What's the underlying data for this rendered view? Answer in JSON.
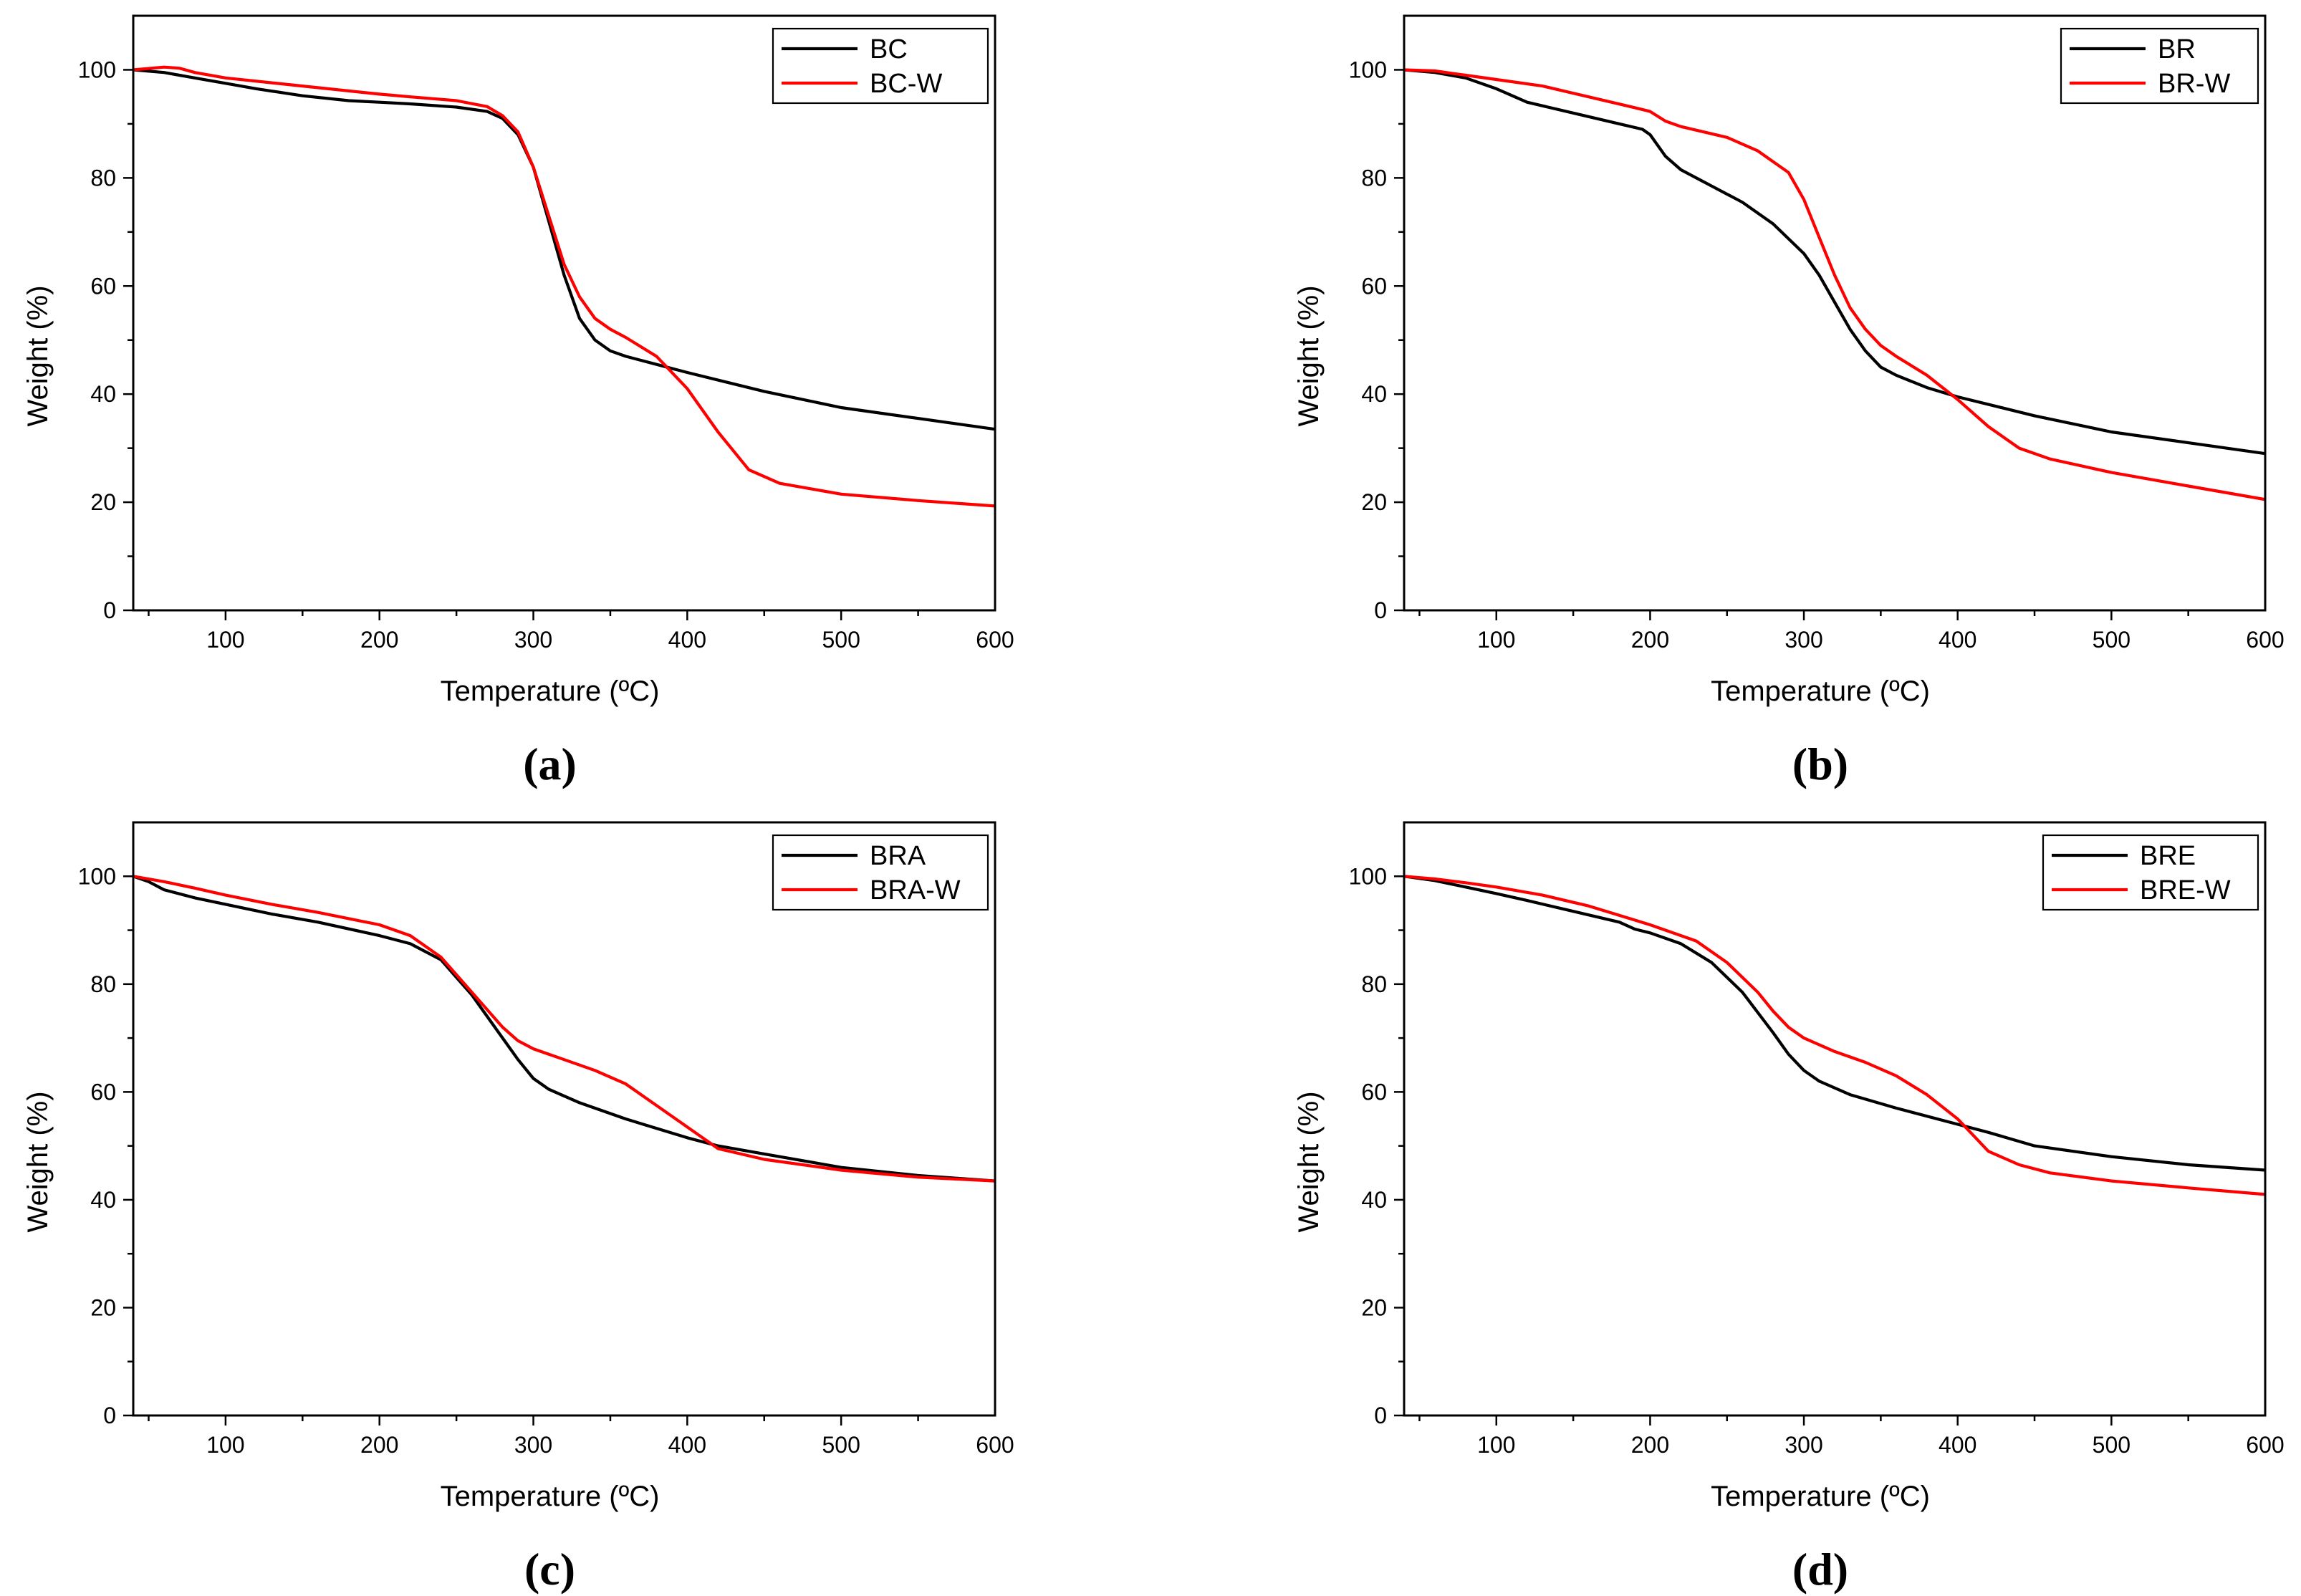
{
  "chart_data": [
    {
      "type": "line",
      "panel_label": "(a)",
      "xlabel": "Temperature (ºC)",
      "ylabel": "Weight (%)",
      "xlim": [
        40,
        600
      ],
      "ylim": [
        0,
        110
      ],
      "xticks": [
        100,
        200,
        300,
        400,
        500,
        600
      ],
      "yticks": [
        0,
        20,
        40,
        60,
        80,
        100
      ],
      "legend_position": "top-right",
      "series": [
        {
          "name": "BC",
          "color": "#000000",
          "x": [
            40,
            60,
            80,
            100,
            120,
            150,
            180,
            200,
            220,
            250,
            270,
            280,
            290,
            300,
            310,
            320,
            330,
            340,
            350,
            360,
            380,
            400,
            450,
            500,
            550,
            600
          ],
          "y": [
            100,
            99.5,
            98.5,
            97.5,
            96.5,
            95.2,
            94.3,
            94,
            93.7,
            93.1,
            92.3,
            91,
            88,
            82,
            72,
            62,
            54,
            50,
            48,
            47,
            45.5,
            44,
            40.5,
            37.5,
            35.5,
            33.5
          ]
        },
        {
          "name": "BC-W",
          "color": "#ff0000",
          "x": [
            40,
            60,
            70,
            80,
            100,
            150,
            200,
            220,
            250,
            270,
            280,
            290,
            300,
            310,
            320,
            330,
            340,
            350,
            360,
            380,
            400,
            420,
            440,
            460,
            500,
            550,
            600
          ],
          "y": [
            100,
            100.5,
            100.3,
            99.5,
            98.5,
            97,
            95.5,
            95,
            94.3,
            93.2,
            91.5,
            88.5,
            82,
            73,
            64,
            58,
            54,
            52,
            50.5,
            47,
            41,
            33,
            26,
            23.5,
            21.5,
            20.3,
            19.3
          ]
        }
      ]
    },
    {
      "type": "line",
      "panel_label": "(b)",
      "xlabel": "Temperature (ºC)",
      "ylabel": "Weight (%)",
      "xlim": [
        40,
        600
      ],
      "ylim": [
        0,
        110
      ],
      "xticks": [
        100,
        200,
        300,
        400,
        500,
        600
      ],
      "yticks": [
        0,
        20,
        40,
        60,
        80,
        100
      ],
      "legend_position": "top-right",
      "series": [
        {
          "name": "BR",
          "color": "#000000",
          "x": [
            40,
            60,
            80,
            100,
            120,
            150,
            180,
            195,
            200,
            210,
            220,
            240,
            260,
            280,
            300,
            310,
            320,
            330,
            340,
            350,
            360,
            380,
            400,
            450,
            500,
            550,
            600
          ],
          "y": [
            100,
            99.5,
            98.5,
            96.5,
            94,
            92,
            90,
            89,
            88,
            84,
            81.5,
            78.5,
            75.5,
            71.5,
            66,
            62,
            57,
            52,
            48,
            45,
            43.5,
            41.2,
            39.5,
            36,
            33,
            31,
            29
          ]
        },
        {
          "name": "BR-W",
          "color": "#ff0000",
          "x": [
            40,
            60,
            80,
            100,
            130,
            160,
            190,
            200,
            210,
            220,
            250,
            270,
            290,
            300,
            310,
            320,
            330,
            340,
            350,
            360,
            380,
            400,
            420,
            440,
            460,
            500,
            550,
            600
          ],
          "y": [
            100,
            99.8,
            99,
            98.2,
            97,
            95,
            93,
            92.3,
            90.5,
            89.5,
            87.5,
            85,
            81,
            76,
            69,
            62,
            56,
            52,
            49,
            47,
            43.5,
            39,
            34,
            30,
            28,
            25.5,
            23,
            20.5
          ]
        }
      ]
    },
    {
      "type": "line",
      "panel_label": "(c)",
      "xlabel": "Temperature (ºC)",
      "ylabel": "Weight (%)",
      "xlim": [
        40,
        600
      ],
      "ylim": [
        0,
        110
      ],
      "xticks": [
        100,
        200,
        300,
        400,
        500,
        600
      ],
      "yticks": [
        0,
        20,
        40,
        60,
        80,
        100
      ],
      "legend_position": "top-right",
      "series": [
        {
          "name": "BRA",
          "color": "#000000",
          "x": [
            40,
            50,
            60,
            80,
            100,
            130,
            160,
            200,
            220,
            240,
            260,
            280,
            290,
            300,
            310,
            330,
            360,
            400,
            420,
            450,
            500,
            550,
            600
          ],
          "y": [
            100,
            99,
            97.5,
            96,
            94.8,
            93,
            91.5,
            89,
            87.5,
            84.5,
            78,
            70,
            66,
            62.5,
            60.5,
            58,
            55,
            51.5,
            50,
            48.5,
            46,
            44.5,
            43.5
          ]
        },
        {
          "name": "BRA-W",
          "color": "#ff0000",
          "x": [
            40,
            60,
            80,
            100,
            130,
            160,
            200,
            220,
            240,
            260,
            280,
            290,
            300,
            320,
            340,
            360,
            380,
            400,
            410,
            420,
            450,
            500,
            550,
            600
          ],
          "y": [
            100,
            99,
            97.8,
            96.5,
            94.8,
            93.3,
            91,
            89,
            85,
            78.5,
            72,
            69.5,
            68,
            66,
            64,
            61.5,
            57.5,
            53.5,
            51.5,
            49.5,
            47.5,
            45.5,
            44.2,
            43.5
          ]
        }
      ]
    },
    {
      "type": "line",
      "panel_label": "(d)",
      "xlabel": "Temperature (ºC)",
      "ylabel": "Weight (%)",
      "xlim": [
        40,
        600
      ],
      "ylim": [
        0,
        110
      ],
      "xticks": [
        100,
        200,
        300,
        400,
        500,
        600
      ],
      "yticks": [
        0,
        20,
        40,
        60,
        80,
        100
      ],
      "legend_position": "top-right",
      "series": [
        {
          "name": "BRE",
          "color": "#000000",
          "x": [
            40,
            60,
            80,
            100,
            120,
            150,
            180,
            190,
            200,
            220,
            240,
            260,
            280,
            290,
            300,
            310,
            330,
            360,
            400,
            420,
            450,
            500,
            550,
            600
          ],
          "y": [
            100,
            99.2,
            98,
            96.8,
            95.5,
            93.5,
            91.5,
            90.2,
            89.5,
            87.5,
            84,
            78.5,
            71,
            67,
            64,
            62,
            59.5,
            57,
            54,
            52.5,
            50,
            48,
            46.5,
            45.5
          ]
        },
        {
          "name": "BRE-W",
          "color": "#ff0000",
          "x": [
            40,
            60,
            80,
            100,
            130,
            160,
            200,
            230,
            250,
            270,
            280,
            290,
            300,
            320,
            340,
            360,
            380,
            400,
            410,
            420,
            440,
            460,
            500,
            550,
            600
          ],
          "y": [
            100,
            99.5,
            98.8,
            98,
            96.5,
            94.5,
            91,
            88,
            84,
            78.5,
            75,
            72,
            70,
            67.5,
            65.5,
            63,
            59.5,
            55,
            52,
            49,
            46.5,
            45,
            43.5,
            42.2,
            41
          ]
        }
      ]
    }
  ]
}
